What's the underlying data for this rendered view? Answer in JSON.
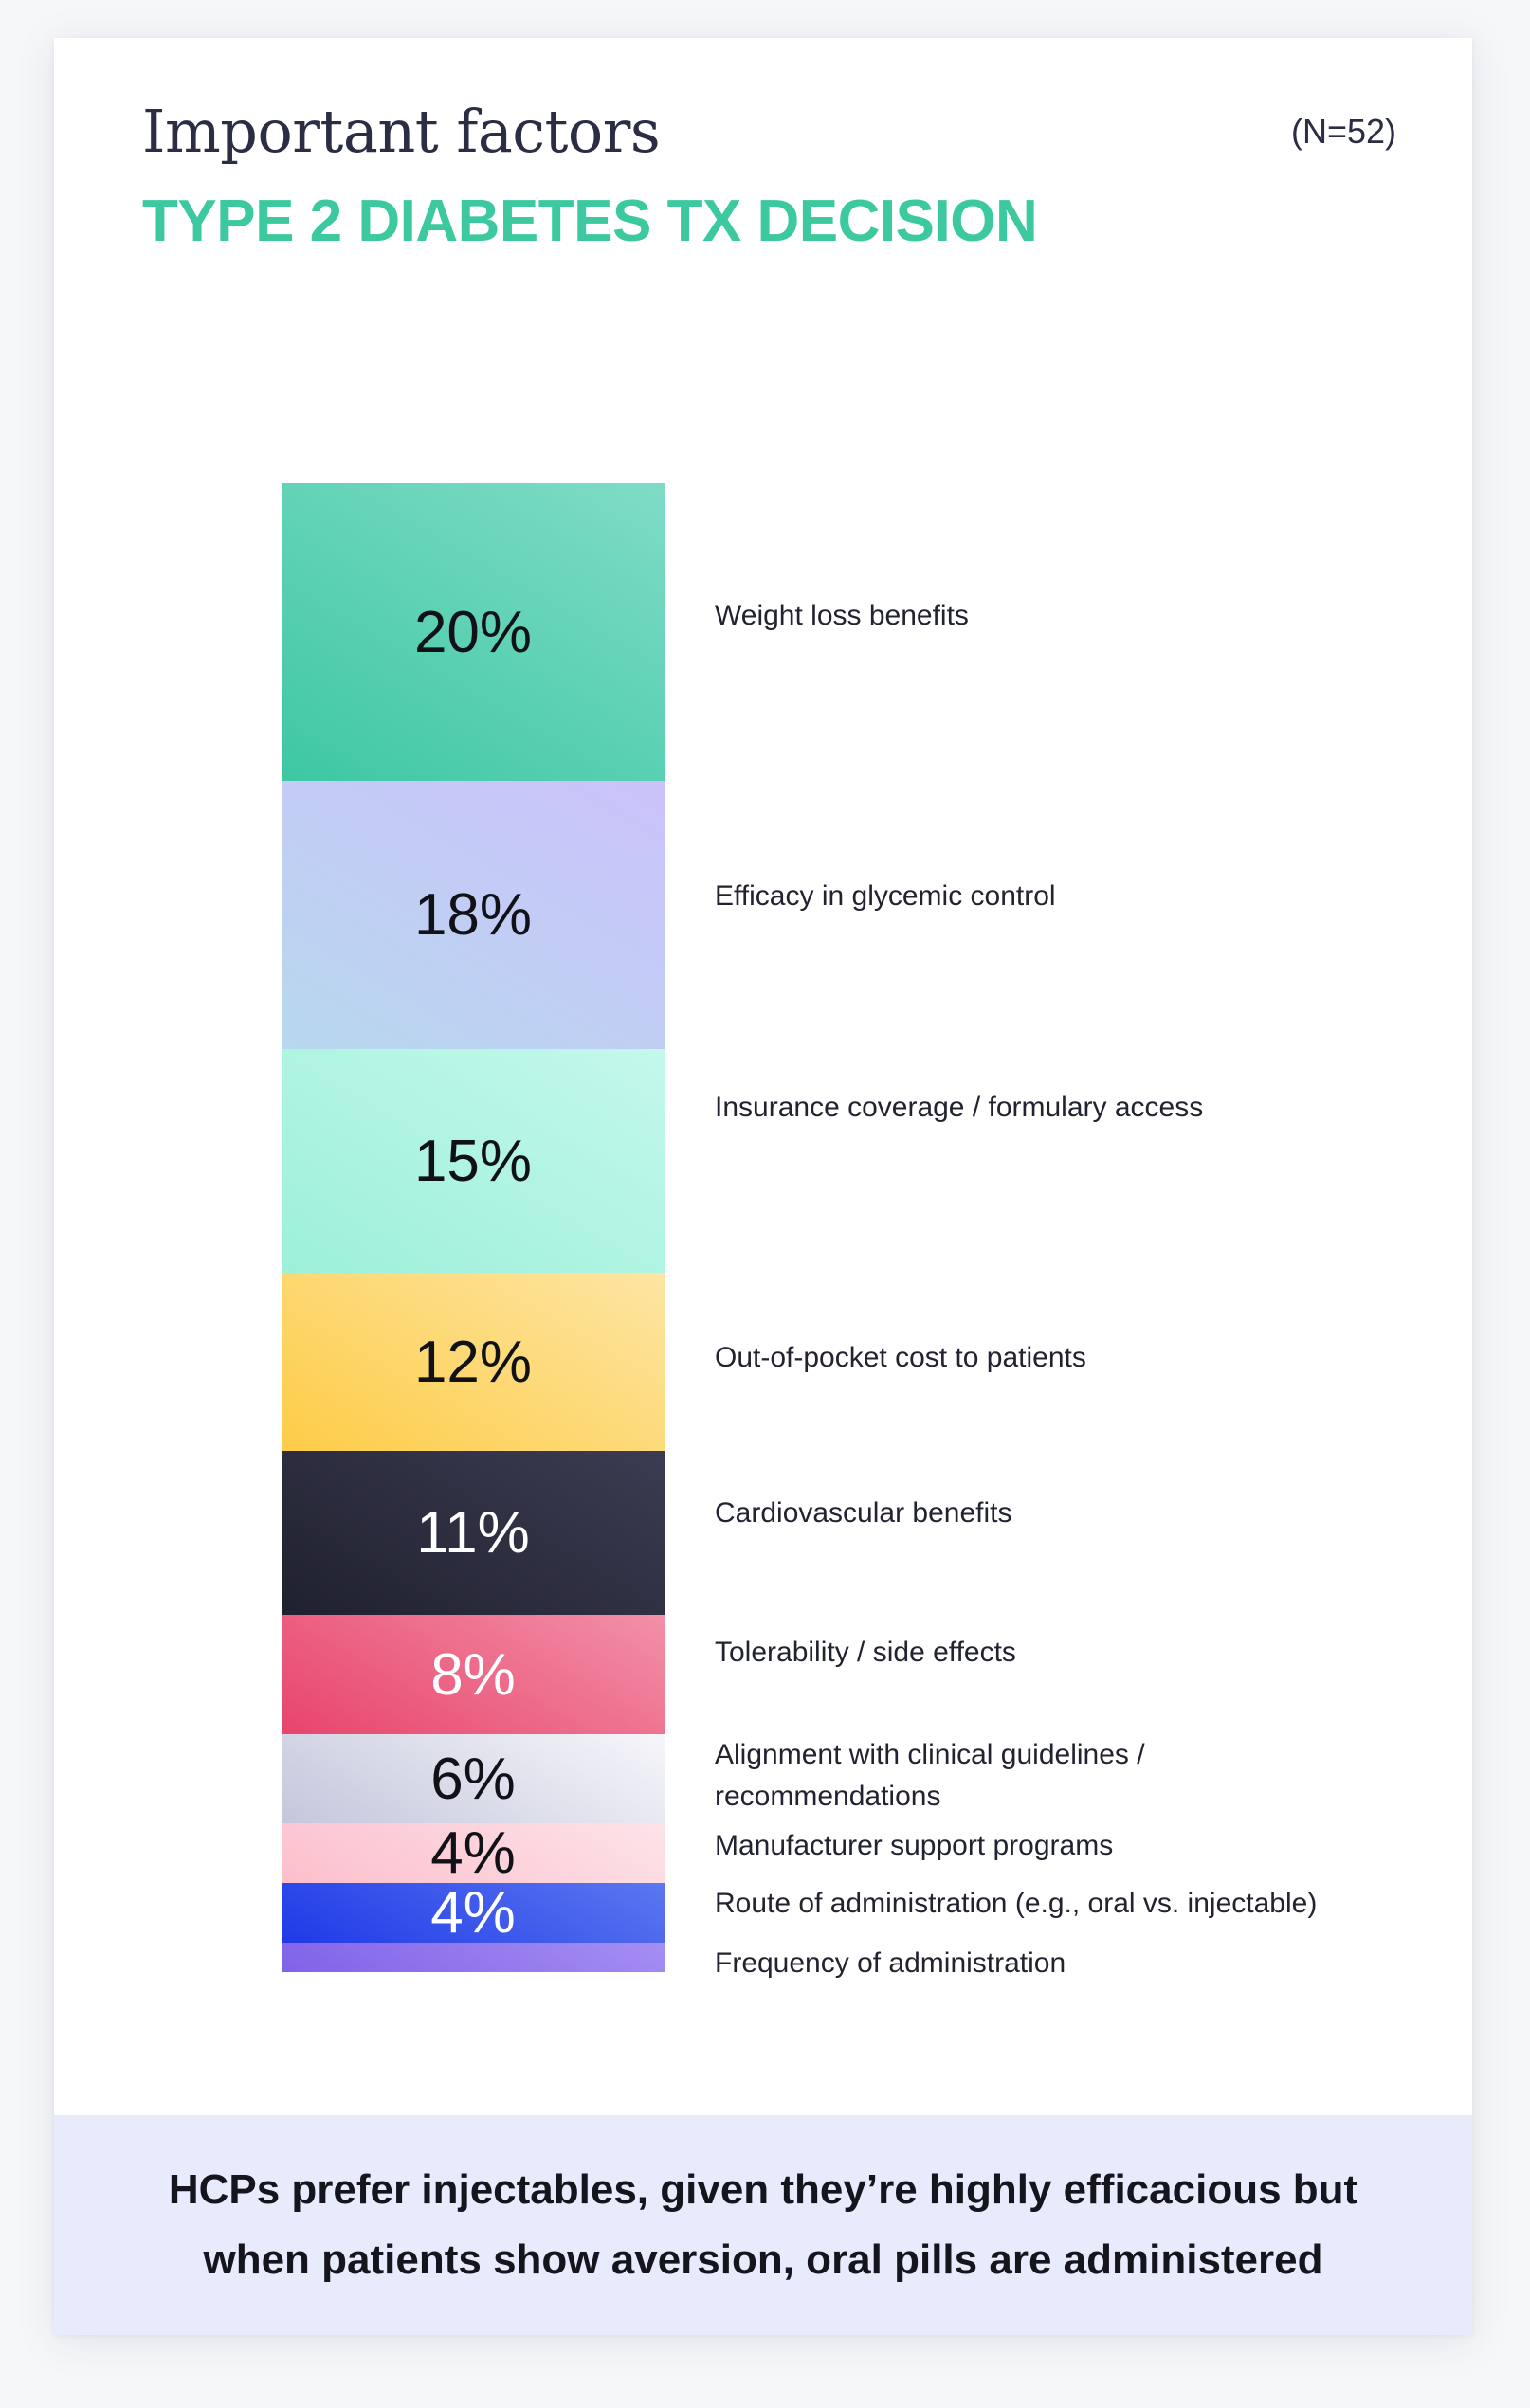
{
  "header": {
    "title": "Important factors",
    "subtitle": "TYPE 2 DIABETES TX DECISION",
    "sample_size": "(N=52)"
  },
  "colors": {
    "subtitle": "#3cc9a0",
    "footer_bg": "#e8ebfb",
    "title": "#2b2d45"
  },
  "chart_data": {
    "type": "bar",
    "stacked": true,
    "orientation": "vertical",
    "unit": "%",
    "categories": [
      "Weight loss benefits",
      "Efficacy in glycemic control",
      "Insurance coverage / formulary access",
      "Out-of-pocket cost to patients",
      "Cardiovascular benefits",
      "Tolerability / side effects",
      "Alignment with clinical guidelines / recommendations",
      "Manufacturer support programs",
      "Route of administration (e.g., oral vs. injectable)",
      "Frequency of administration"
    ],
    "values": [
      20,
      18,
      15,
      12,
      11,
      8,
      6,
      4,
      4,
      2
    ],
    "value_labels": [
      "20%",
      "18%",
      "15%",
      "12%",
      "11%",
      "8%",
      "6%",
      "4%",
      "4%",
      ""
    ],
    "label_colors": [
      "#111118",
      "#111118",
      "#111118",
      "#111118",
      "#ffffff",
      "#ffffff",
      "#111118",
      "#111118",
      "#ffffff",
      "#111118"
    ],
    "fills": [
      [
        "#3ec7a3",
        "#7fdcc6"
      ],
      [
        "#b7d8ee",
        "#cbc2fb"
      ],
      [
        "#9cf0da",
        "#c4f8ea"
      ],
      [
        "#fdcc47",
        "#fde5a3"
      ],
      [
        "#20212e",
        "#3b3c52"
      ],
      [
        "#e8446b",
        "#f290a8"
      ],
      [
        "#c4c7dc",
        "#f6f6fa"
      ],
      [
        "#fcbfcc",
        "#fde3e9"
      ],
      [
        "#1f3ae6",
        "#5c77f0"
      ],
      [
        "#8062e8",
        "#a58ff2"
      ]
    ]
  },
  "footer": {
    "line1": "HCPs prefer injectables, given they’re highly efficacious but",
    "line2": "when patients show aversion, oral pills are administered"
  }
}
